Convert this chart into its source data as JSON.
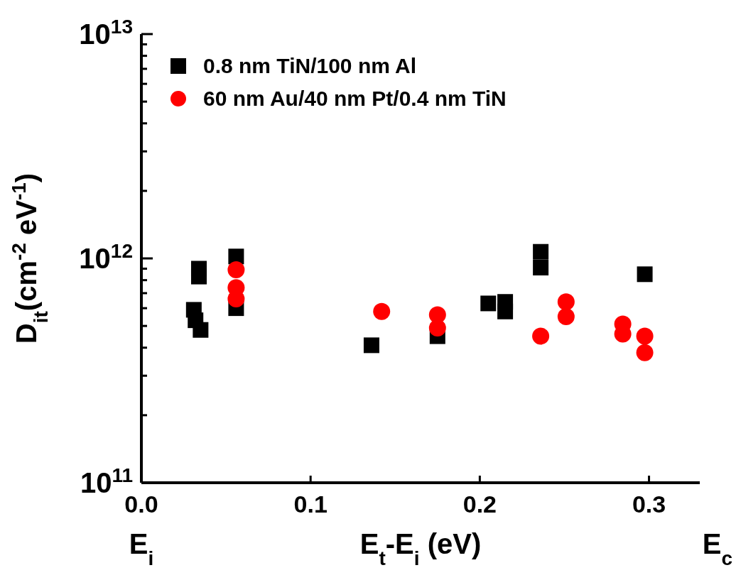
{
  "chart_data": {
    "type": "scatter",
    "xlabel": "E$_{t}$-E$_{i}$ (eV)",
    "ylabel": "D$_{it}$(cm$^{-2}$ eV$^{-1}$)",
    "log": "y",
    "xlim": [
      0,
      0.33
    ],
    "xticks": [
      {
        "value": 0,
        "label": "0.0"
      },
      0.1,
      0.2,
      0.3
    ],
    "ylim": [
      100000000000.0,
      10000000000000.0
    ],
    "yticks": [
      {
        "value": 100000000000.0,
        "label": "10$^{11}$"
      },
      {
        "value": 200000000000.0,
        "label": null
      },
      {
        "value": 300000000000.0,
        "label": null
      },
      {
        "value": 400000000000.0,
        "label": null
      },
      {
        "value": 500000000000.0,
        "label": null
      },
      {
        "value": 600000000000.0,
        "label": null
      },
      {
        "value": 700000000000.0,
        "label": null
      },
      {
        "value": 800000000000.0,
        "label": null
      },
      {
        "value": 900000000000.0,
        "label": null
      },
      {
        "value": 1000000000000.0,
        "label": "10$^{12}$"
      },
      {
        "value": 2000000000000.0,
        "label": null
      },
      {
        "value": 3000000000000.0,
        "label": null
      },
      {
        "value": 4000000000000.0,
        "label": null
      },
      {
        "value": 5000000000000.0,
        "label": null
      },
      {
        "value": 6000000000000.0,
        "label": null
      },
      {
        "value": 7000000000000.0,
        "label": null
      },
      {
        "value": 8000000000000.0,
        "label": null
      },
      {
        "value": 9000000000000.0,
        "label": null
      },
      {
        "value": 10000000000000.0,
        "label": "10$^{13}$"
      }
    ],
    "legend": "top left",
    "grid": false,
    "annotations": [
      "E$_{i}$",
      "E$_{c}$"
    ],
    "series": [
      {
        "name": "0.8 nm TiN/100 nm Al",
        "color": "#000000",
        "marker": "square",
        "x": [
          0.034,
          0.034,
          0.031,
          0.032,
          0.035,
          0.056,
          0.056,
          0.136,
          0.175,
          0.205,
          0.215,
          0.215,
          0.236,
          0.236,
          0.2975
        ],
        "values": [
          900000000000.0,
          830000000000.0,
          590000000000.0,
          530000000000.0,
          480000000000.0,
          1020000000000.0,
          600000000000.0,
          410000000000.0,
          450000000000.0,
          630000000000.0,
          640000000000.0,
          580000000000.0,
          1070000000000.0,
          910000000000.0,
          850000000000.0
        ]
      },
      {
        "name": "60 nm Au/40 nm Pt/0.4 nm TiN",
        "color": "#ff0000",
        "marker": "circle",
        "x": [
          0.056,
          0.056,
          0.056,
          0.142,
          0.175,
          0.175,
          0.236,
          0.251,
          0.251,
          0.2845,
          0.2845,
          0.2975,
          0.2975
        ],
        "values": [
          890000000000.0,
          740000000000.0,
          660000000000.0,
          580000000000.0,
          560000000000.0,
          490000000000.0,
          450000000000.0,
          640000000000.0,
          550000000000.0,
          510000000000.0,
          460000000000.0,
          450000000000.0,
          380000000000.0
        ]
      }
    ]
  }
}
